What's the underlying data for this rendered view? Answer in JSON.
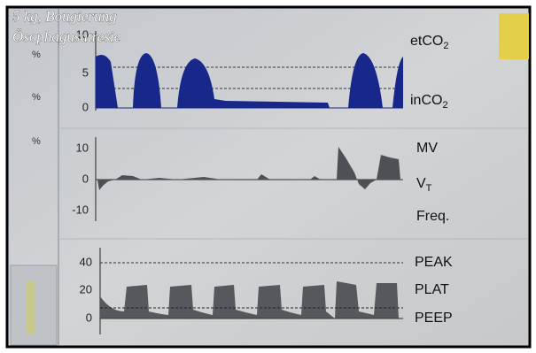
{
  "caption": [
    "5 kg, Bougierung",
    "Ösophagusatresie"
  ],
  "units": [
    "%",
    "%",
    "%"
  ],
  "panels": [
    {
      "ticks": [
        10,
        5,
        0
      ],
      "labels": [
        {
          "main": "etCO",
          "sub": "2"
        },
        {
          "main": "inCO",
          "sub": "2"
        }
      ]
    },
    {
      "ticks": [
        10,
        0,
        -10
      ],
      "labels": [
        {
          "main": "MV"
        },
        {
          "main": "V",
          "sub": "T"
        },
        {
          "main": "Freq."
        }
      ]
    },
    {
      "ticks": [
        40,
        20,
        0
      ],
      "labels": [
        {
          "main": "PEAK"
        },
        {
          "main": "PLAT"
        },
        {
          "main": "PEEP"
        }
      ]
    }
  ]
}
